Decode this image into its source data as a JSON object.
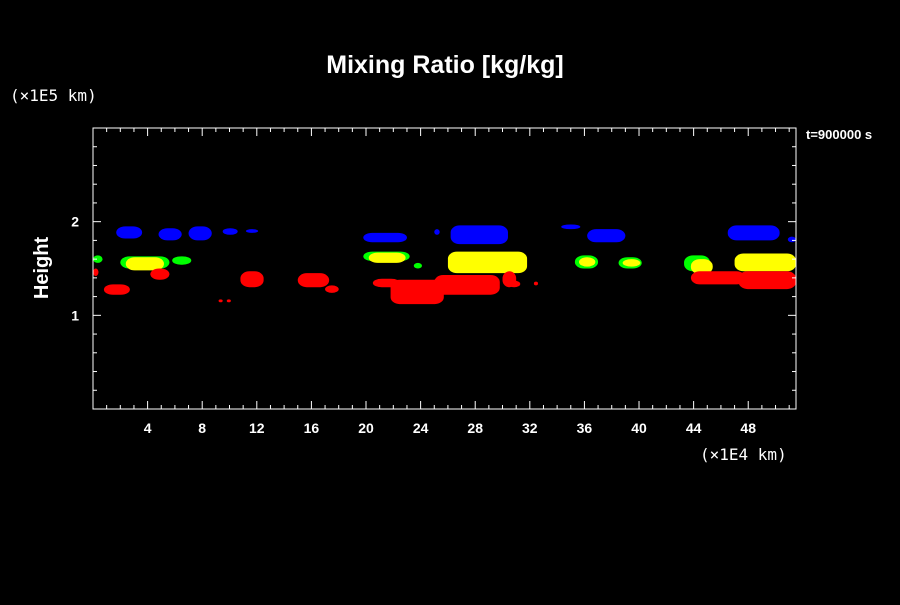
{
  "chart_data": {
    "type": "area",
    "title": "Mixing Ratio [kg/kg]",
    "ylabel": "Height",
    "xlabel": "",
    "x_scale_note": "(×1E4 km)",
    "y_scale_note": "(×1E5 km)",
    "time_label": "t=900000 s",
    "xlim": [
      0,
      51.5
    ],
    "ylim": [
      0,
      3
    ],
    "x_ticks": [
      4,
      8,
      12,
      16,
      20,
      24,
      28,
      32,
      36,
      40,
      44,
      48
    ],
    "y_ticks": [
      1,
      2
    ],
    "grid": false,
    "background": "#000000",
    "axes_color": "#ffffff",
    "series": [
      {
        "color": "#0000ff",
        "patches": [
          {
            "x": [
              1.7,
              3.6
            ],
            "y": [
              1.82,
              1.95
            ]
          },
          {
            "x": [
              4.8,
              6.5
            ],
            "y": [
              1.8,
              1.93
            ]
          },
          {
            "x": [
              7.0,
              8.7
            ],
            "y": [
              1.8,
              1.95
            ]
          },
          {
            "x": [
              9.5,
              10.6
            ],
            "y": [
              1.86,
              1.93
            ]
          },
          {
            "x": [
              11.2,
              12.1
            ],
            "y": [
              1.88,
              1.92
            ]
          },
          {
            "x": [
              19.8,
              23.0
            ],
            "y": [
              1.78,
              1.88
            ]
          },
          {
            "x": [
              25.0,
              25.4
            ],
            "y": [
              1.86,
              1.92
            ]
          },
          {
            "x": [
              26.2,
              30.4
            ],
            "y": [
              1.76,
              1.96
            ]
          },
          {
            "x": [
              34.3,
              35.7
            ],
            "y": [
              1.92,
              1.97
            ]
          },
          {
            "x": [
              36.2,
              39.0
            ],
            "y": [
              1.78,
              1.92
            ]
          },
          {
            "x": [
              46.5,
              50.3
            ],
            "y": [
              1.8,
              1.96
            ]
          },
          {
            "x": [
              50.9,
              51.5
            ],
            "y": [
              1.78,
              1.84
            ]
          }
        ]
      },
      {
        "color": "#00ff00",
        "patches": [
          {
            "x": [
              0.0,
              0.7
            ],
            "y": [
              1.56,
              1.64
            ]
          },
          {
            "x": [
              2.0,
              5.6
            ],
            "y": [
              1.5,
              1.63
            ]
          },
          {
            "x": [
              5.8,
              7.2
            ],
            "y": [
              1.54,
              1.63
            ]
          },
          {
            "x": [
              19.8,
              23.2
            ],
            "y": [
              1.58,
              1.68
            ]
          },
          {
            "x": [
              23.5,
              24.1
            ],
            "y": [
              1.5,
              1.56
            ]
          },
          {
            "x": [
              35.3,
              37.0
            ],
            "y": [
              1.5,
              1.64
            ]
          },
          {
            "x": [
              38.5,
              40.2
            ],
            "y": [
              1.5,
              1.62
            ]
          },
          {
            "x": [
              43.3,
              45.2
            ],
            "y": [
              1.47,
              1.64
            ]
          }
        ]
      },
      {
        "color": "#ffff00",
        "patches": [
          {
            "x": [
              2.4,
              5.2
            ],
            "y": [
              1.48,
              1.62
            ]
          },
          {
            "x": [
              20.2,
              22.9
            ],
            "y": [
              1.56,
              1.67
            ]
          },
          {
            "x": [
              26.0,
              31.8
            ],
            "y": [
              1.45,
              1.68
            ]
          },
          {
            "x": [
              35.6,
              36.8
            ],
            "y": [
              1.52,
              1.62
            ]
          },
          {
            "x": [
              38.8,
              40.1
            ],
            "y": [
              1.52,
              1.6
            ]
          },
          {
            "x": [
              43.8,
              45.4
            ],
            "y": [
              1.44,
              1.6
            ]
          },
          {
            "x": [
              47.0,
              51.5
            ],
            "y": [
              1.47,
              1.66
            ]
          }
        ]
      },
      {
        "color": "#ff0000",
        "patches": [
          {
            "x": [
              0.0,
              0.4
            ],
            "y": [
              1.42,
              1.5
            ]
          },
          {
            "x": [
              0.8,
              2.7
            ],
            "y": [
              1.22,
              1.33
            ]
          },
          {
            "x": [
              4.2,
              5.6
            ],
            "y": [
              1.38,
              1.5
            ]
          },
          {
            "x": [
              9.2,
              9.5
            ],
            "y": [
              1.14,
              1.17
            ]
          },
          {
            "x": [
              9.8,
              10.1
            ],
            "y": [
              1.14,
              1.17
            ]
          },
          {
            "x": [
              10.8,
              12.5
            ],
            "y": [
              1.3,
              1.47
            ]
          },
          {
            "x": [
              15.0,
              17.3
            ],
            "y": [
              1.3,
              1.45
            ]
          },
          {
            "x": [
              17.0,
              18.0
            ],
            "y": [
              1.24,
              1.32
            ]
          },
          {
            "x": [
              20.5,
              22.5
            ],
            "y": [
              1.3,
              1.39
            ]
          },
          {
            "x": [
              21.8,
              25.7
            ],
            "y": [
              1.12,
              1.38
            ]
          },
          {
            "x": [
              25.0,
              29.8
            ],
            "y": [
              1.22,
              1.43
            ]
          },
          {
            "x": [
              30.0,
              31.0
            ],
            "y": [
              1.3,
              1.47
            ]
          },
          {
            "x": [
              30.4,
              31.3
            ],
            "y": [
              1.3,
              1.37
            ]
          },
          {
            "x": [
              32.3,
              32.6
            ],
            "y": [
              1.32,
              1.36
            ]
          },
          {
            "x": [
              43.8,
              47.8
            ],
            "y": [
              1.33,
              1.47
            ]
          },
          {
            "x": [
              47.3,
              51.5
            ],
            "y": [
              1.28,
              1.47
            ]
          }
        ]
      }
    ]
  }
}
